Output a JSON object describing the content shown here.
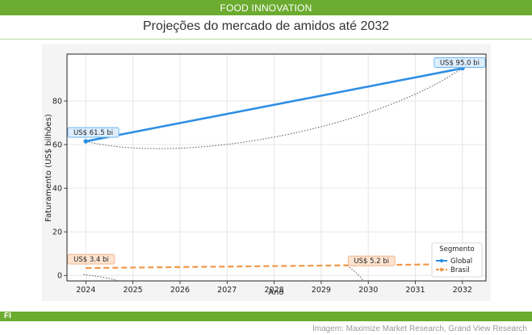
{
  "header": {
    "section_label": "FOOD INNOVATION"
  },
  "headline": "Projeções do mercado de amidos até 2032",
  "footer": {
    "logo_text": "FI",
    "credit": "Imagem: Maximize Market Research, Grand View Research"
  },
  "colors": {
    "brand_green": "#6bab2f",
    "global": "#2e8fe3",
    "brasil": "#f0974a"
  },
  "chart_data": {
    "type": "line",
    "xlabel": "Ano",
    "ylabel": "Faturamento (US$ bilhões)",
    "x": [
      2024,
      2032
    ],
    "xticks": [
      2024,
      2025,
      2026,
      2027,
      2028,
      2029,
      2030,
      2031,
      2032
    ],
    "yticks": [
      0,
      20,
      40,
      60,
      80
    ],
    "xlim": [
      2023.6,
      2032.5
    ],
    "ylim": [
      -2.5,
      101.5
    ],
    "grid": true,
    "legend": {
      "title": "Segmento",
      "placement": "bottom-right"
    },
    "series": [
      {
        "name": "Global",
        "values": [
          61.5,
          95.0
        ],
        "style": "solid",
        "color": "#2e8fe3"
      },
      {
        "name": "Brasil",
        "values": [
          3.4,
          5.2
        ],
        "style": "dashed",
        "color": "#f0974a"
      }
    ],
    "annotations": [
      {
        "text": "US$ 61.5 bi",
        "x": 2024,
        "y": 61.5,
        "series": "Global"
      },
      {
        "text": "US$ 95.0 bi",
        "x": 2032,
        "y": 95.0,
        "series": "Global"
      },
      {
        "text": "US$ 3.4 bi",
        "x": 2024,
        "y": 3.4,
        "series": "Brasil"
      },
      {
        "text": "US$ 5.2 bi",
        "x": 2030,
        "y": 5.2,
        "series": "Brasil"
      }
    ]
  }
}
